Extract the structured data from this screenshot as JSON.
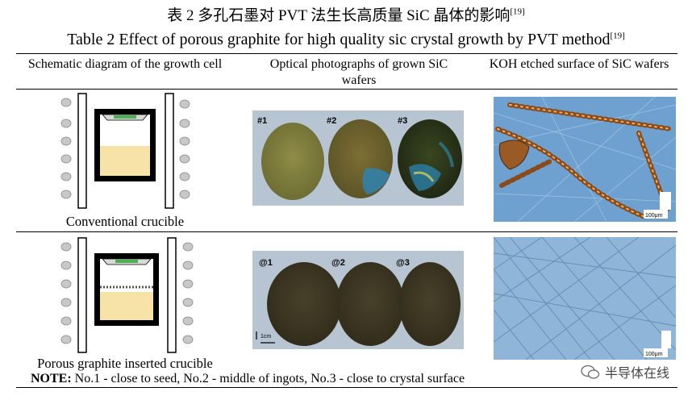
{
  "title": {
    "cn": "表 2 多孔石墨对 PVT 法生长高质量 SiC 晶体的影响",
    "cn_ref": "[19]",
    "en": "Table 2 Effect of porous graphite for high quality sic crystal growth by PVT method",
    "en_ref": "[19]"
  },
  "headers": {
    "col1": "Schematic diagram of the growth cell",
    "col2": "Optical photographs of grown SiC wafers",
    "col3": "KOH etched surface of SiC wafers"
  },
  "rows": [
    {
      "caption": "Conventional crucible",
      "wafer_labels": [
        "#1",
        "#2",
        "#3"
      ],
      "scale_label": "100μm"
    },
    {
      "caption": "Porous graphite inserted crucible",
      "wafer_labels": [
        "@1",
        "@2",
        "@3"
      ],
      "wafer_scale_label": "1cm",
      "scale_label": "100μm"
    }
  ],
  "note": {
    "label": "NOTE:",
    "text": " No.1 - close to seed, No.2 - middle of ingots, No.3 - close to crystal surface"
  },
  "watermark": "半导体在线",
  "colors": {
    "crucible_fill": "#f7e3a8",
    "seed_green": "#4caf50",
    "wafer_panel_bg": "#b7c4d2",
    "micro_bg_1": "#6ea1cf",
    "micro_bg_2": "#8fb6d8"
  }
}
